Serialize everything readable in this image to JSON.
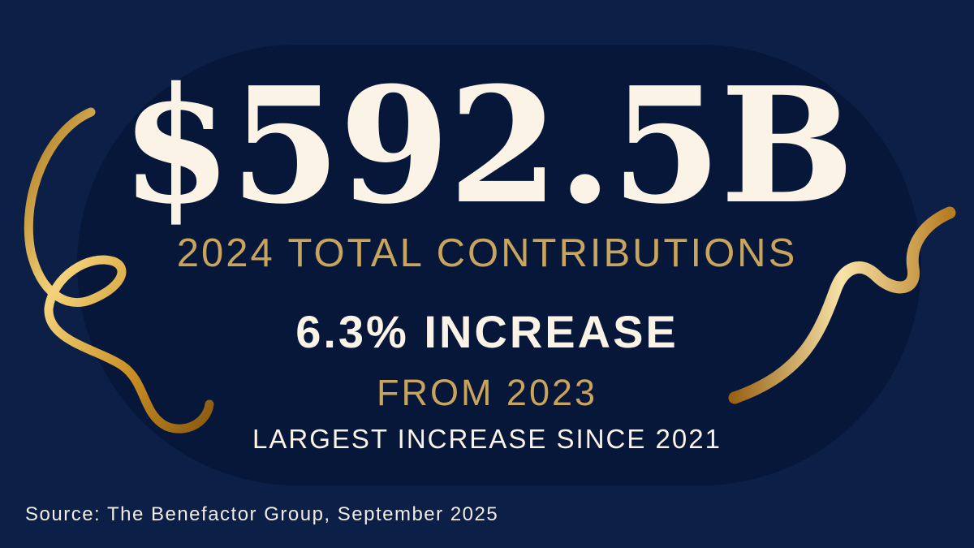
{
  "headline": "$592.5B",
  "subtitle": "2024 TOTAL CONTRIBUTIONS",
  "increase": "6.3% INCREASE",
  "from_year": "FROM 2023",
  "note": "LARGEST INCREASE SINCE 2021",
  "source": "Source: The Benefactor Group, September 2025",
  "colors": {
    "background": "#0b1f47",
    "panel": "#061739",
    "gold": "#c9a45c",
    "cream": "#fbf3e6"
  }
}
